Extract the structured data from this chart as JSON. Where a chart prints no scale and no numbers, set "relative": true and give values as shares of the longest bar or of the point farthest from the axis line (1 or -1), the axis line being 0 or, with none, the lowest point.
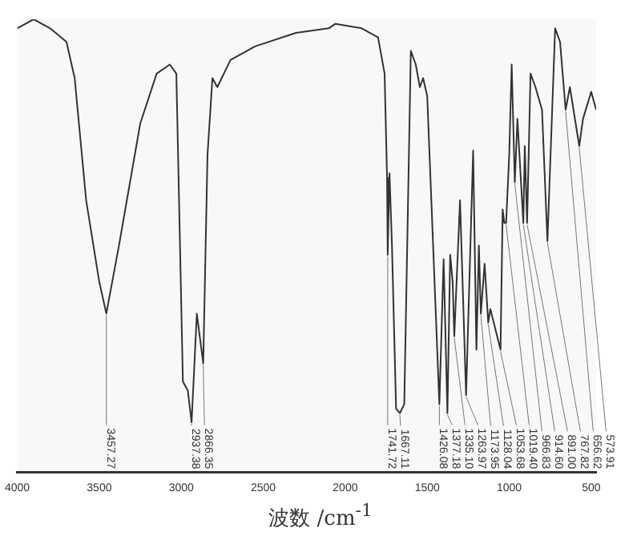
{
  "chart_data": {
    "type": "line",
    "relative": true,
    "xlabel": "波数 /cm$^{-1}$",
    "xlim": [
      4000,
      470
    ],
    "xticks": [
      4000,
      3500,
      3000,
      2500,
      2000,
      1500,
      1000,
      500
    ],
    "grid": false,
    "legend": false,
    "marker": "none",
    "line_style": "solid",
    "tick_labels": "x",
    "series": [
      {
        "color": "#333333",
        "x": [
          4000,
          3900,
          3800,
          3700,
          3650,
          3580,
          3500,
          3457,
          3380,
          3250,
          3150,
          3070,
          3030,
          2990,
          2960,
          2937,
          2905,
          2866,
          2840,
          2810,
          2780,
          2700,
          2550,
          2300,
          2100,
          2060,
          1900,
          1800,
          1760,
          1745,
          1741,
          1730,
          1715,
          1690,
          1667,
          1640,
          1600,
          1570,
          1545,
          1525,
          1500,
          1426,
          1400,
          1377,
          1360,
          1345,
          1335,
          1300,
          1263,
          1220,
          1200,
          1185,
          1173,
          1150,
          1128,
          1115,
          1053,
          1040,
          1030,
          1019,
          1000,
          985,
          966,
          950,
          914,
          905,
          891,
          870,
          840,
          800,
          767,
          720,
          690,
          656,
          630,
          573,
          550,
          500,
          470
        ],
        "values": [
          0.98,
          1,
          0.98,
          0.95,
          0.87,
          0.6,
          0.42,
          0.35,
          0.5,
          0.77,
          0.88,
          0.9,
          0.88,
          0.2,
          0.18,
          0.11,
          0.35,
          0.24,
          0.7,
          0.87,
          0.85,
          0.91,
          0.94,
          0.97,
          0.98,
          0.99,
          0.98,
          0.96,
          0.88,
          0.65,
          0.48,
          0.66,
          0.5,
          0.14,
          0.13,
          0.15,
          0.93,
          0.9,
          0.85,
          0.87,
          0.83,
          0.15,
          0.47,
          0.13,
          0.48,
          0.42,
          0.3,
          0.6,
          0.17,
          0.71,
          0.27,
          0.5,
          0.35,
          0.46,
          0.33,
          0.36,
          0.27,
          0.58,
          0.55,
          0.55,
          0.7,
          0.9,
          0.64,
          0.78,
          0.55,
          0.72,
          0.55,
          0.88,
          0.85,
          0.8,
          0.51,
          0.98,
          0.95,
          0.8,
          0.85,
          0.72,
          0.78,
          0.84,
          0.8
        ]
      }
    ],
    "annotations": [
      {
        "text": "3457.27",
        "x": 3457,
        "y": 0.35
      },
      {
        "text": "2937.38",
        "x": 2937,
        "y": 0.11
      },
      {
        "text": "2866.35",
        "x": 2866,
        "y": 0.24
      },
      {
        "text": "1741.72",
        "x": 1741,
        "y": 0.48
      },
      {
        "text": "1667.11",
        "x": 1667,
        "y": 0.13
      },
      {
        "text": "1426.08",
        "x": 1426,
        "y": 0.15
      },
      {
        "text": "1377.18",
        "x": 1377,
        "y": 0.13
      },
      {
        "text": "1335.10",
        "x": 1335,
        "y": 0.3
      },
      {
        "text": "1263.97",
        "x": 1263,
        "y": 0.17
      },
      {
        "text": "1173.95",
        "x": 1173,
        "y": 0.35
      },
      {
        "text": "1128.04",
        "x": 1128,
        "y": 0.33
      },
      {
        "text": "1053.68",
        "x": 1053,
        "y": 0.27
      },
      {
        "text": "1019.40",
        "x": 1019,
        "y": 0.55
      },
      {
        "text": "966.83",
        "x": 966,
        "y": 0.64
      },
      {
        "text": "914.60",
        "x": 914,
        "y": 0.55
      },
      {
        "text": "891.00",
        "x": 891,
        "y": 0.55
      },
      {
        "text": "767.82",
        "x": 767,
        "y": 0.51
      },
      {
        "text": "656.62",
        "x": 656,
        "y": 0.8
      },
      {
        "text": "573.91",
        "x": 573,
        "y": 0.72
      }
    ]
  }
}
